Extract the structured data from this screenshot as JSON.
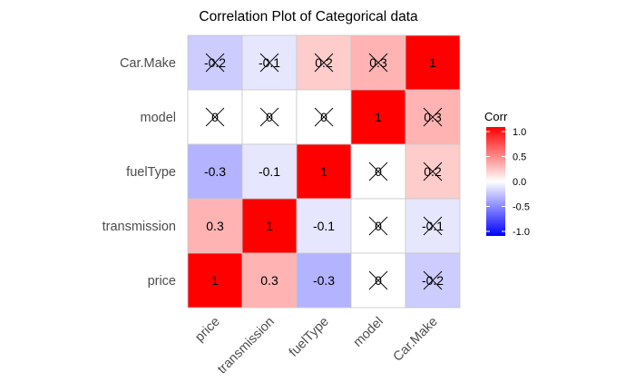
{
  "chart_data": {
    "type": "heatmap",
    "title": "Correlation Plot of Categorical data",
    "x_labels": [
      "price",
      "transmission",
      "fuelType",
      "model",
      "Car.Make"
    ],
    "y_labels": [
      "Car.Make",
      "model",
      "fuelType",
      "transmission",
      "price"
    ],
    "cells": [
      [
        {
          "v": -0.2,
          "label": "-0.2",
          "crossed": true
        },
        {
          "v": -0.1,
          "label": "-0.1",
          "crossed": true
        },
        {
          "v": 0.2,
          "label": "0.2",
          "crossed": true
        },
        {
          "v": 0.3,
          "label": "0.3",
          "crossed": true
        },
        {
          "v": 1,
          "label": "1",
          "crossed": false
        }
      ],
      [
        {
          "v": 0,
          "label": "0",
          "crossed": true
        },
        {
          "v": 0,
          "label": "0",
          "crossed": true
        },
        {
          "v": 0,
          "label": "0",
          "crossed": true
        },
        {
          "v": 1,
          "label": "1",
          "crossed": false
        },
        {
          "v": 0.3,
          "label": "0.3",
          "crossed": true
        }
      ],
      [
        {
          "v": -0.3,
          "label": "-0.3",
          "crossed": false
        },
        {
          "v": -0.1,
          "label": "-0.1",
          "crossed": false
        },
        {
          "v": 1,
          "label": "1",
          "crossed": false
        },
        {
          "v": 0,
          "label": "0",
          "crossed": true
        },
        {
          "v": 0.2,
          "label": "0.2",
          "crossed": true
        }
      ],
      [
        {
          "v": 0.3,
          "label": "0.3",
          "crossed": false
        },
        {
          "v": 1,
          "label": "1",
          "crossed": false
        },
        {
          "v": -0.1,
          "label": "-0.1",
          "crossed": false
        },
        {
          "v": 0,
          "label": "0",
          "crossed": true
        },
        {
          "v": -0.1,
          "label": "-0.1",
          "crossed": true
        }
      ],
      [
        {
          "v": 1,
          "label": "1",
          "crossed": false
        },
        {
          "v": 0.3,
          "label": "0.3",
          "crossed": false
        },
        {
          "v": -0.3,
          "label": "-0.3",
          "crossed": false
        },
        {
          "v": 0,
          "label": "0",
          "crossed": true
        },
        {
          "v": -0.2,
          "label": "-0.2",
          "crossed": true
        }
      ]
    ],
    "legend": {
      "title": "Corr",
      "ticks": [
        1.0,
        0.5,
        0.0,
        -0.5,
        -1.0
      ],
      "tick_labels": [
        "1.0",
        "0.5",
        "0.0",
        "-0.5",
        "-1.0"
      ],
      "range": [
        -1,
        1
      ],
      "colors": {
        "low": "#0000ff",
        "mid": "#ffffff",
        "high": "#ff0000"
      }
    },
    "grid": true,
    "legend_position": "right"
  }
}
